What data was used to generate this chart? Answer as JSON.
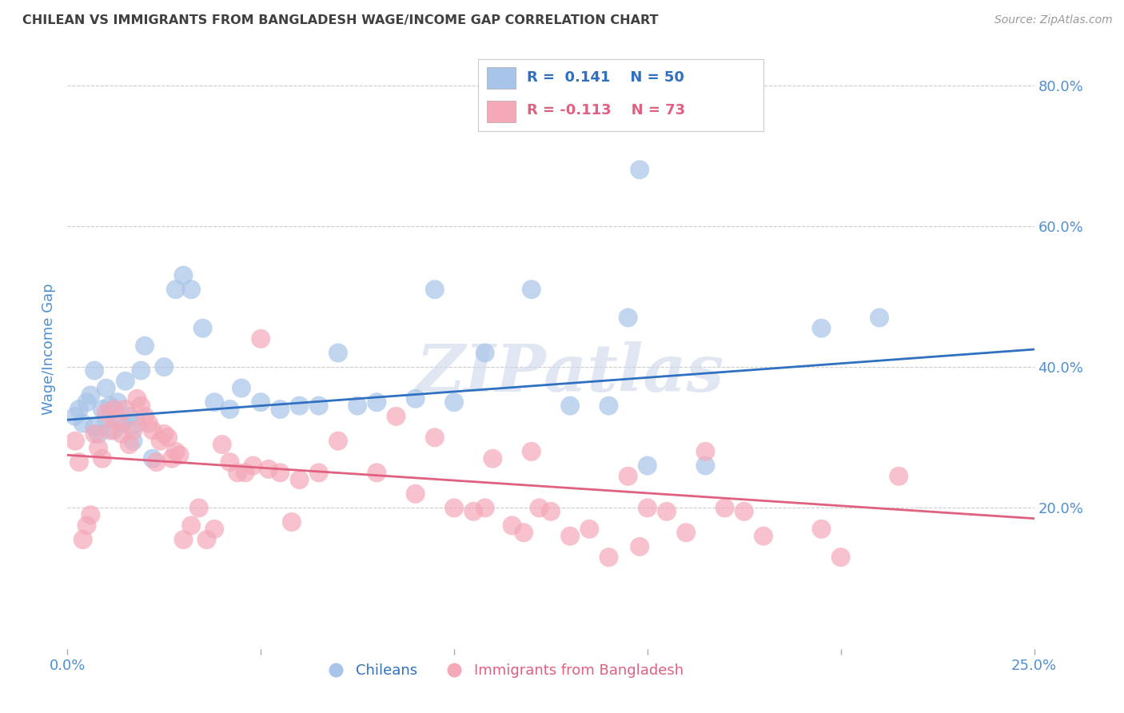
{
  "title": "CHILEAN VS IMMIGRANTS FROM BANGLADESH WAGE/INCOME GAP CORRELATION CHART",
  "source": "Source: ZipAtlas.com",
  "ylabel": "Wage/Income Gap",
  "xlim": [
    0.0,
    0.25
  ],
  "ylim": [
    0.0,
    0.85
  ],
  "xticks": [
    0.0,
    0.05,
    0.1,
    0.15,
    0.2,
    0.25
  ],
  "xticklabels": [
    "0.0%",
    "",
    "",
    "",
    "",
    "25.0%"
  ],
  "ytick_positions_right": [
    0.2,
    0.4,
    0.6,
    0.8
  ],
  "ytick_labels_right": [
    "20.0%",
    "40.0%",
    "60.0%",
    "80.0%"
  ],
  "blue_color": "#a8c4e8",
  "pink_color": "#f4a8b8",
  "blue_line_color": "#3070c0",
  "pink_line_color": "#e06080",
  "blue_label": "Chileans",
  "pink_label": "Immigrants from Bangladesh",
  "watermark": "ZIPatlas",
  "blue_scatter_x": [
    0.002,
    0.003,
    0.004,
    0.005,
    0.006,
    0.007,
    0.007,
    0.008,
    0.009,
    0.01,
    0.01,
    0.011,
    0.012,
    0.013,
    0.014,
    0.015,
    0.016,
    0.017,
    0.018,
    0.019,
    0.02,
    0.022,
    0.025,
    0.028,
    0.03,
    0.032,
    0.035,
    0.038,
    0.042,
    0.045,
    0.05,
    0.055,
    0.06,
    0.065,
    0.07,
    0.075,
    0.08,
    0.09,
    0.095,
    0.1,
    0.108,
    0.12,
    0.13,
    0.14,
    0.145,
    0.148,
    0.15,
    0.165,
    0.195,
    0.21
  ],
  "blue_scatter_y": [
    0.33,
    0.34,
    0.32,
    0.35,
    0.36,
    0.315,
    0.395,
    0.305,
    0.34,
    0.325,
    0.37,
    0.345,
    0.31,
    0.35,
    0.32,
    0.38,
    0.33,
    0.295,
    0.32,
    0.395,
    0.43,
    0.27,
    0.4,
    0.51,
    0.53,
    0.51,
    0.455,
    0.35,
    0.34,
    0.37,
    0.35,
    0.34,
    0.345,
    0.345,
    0.42,
    0.345,
    0.35,
    0.355,
    0.51,
    0.35,
    0.42,
    0.51,
    0.345,
    0.345,
    0.47,
    0.68,
    0.26,
    0.26,
    0.455,
    0.47
  ],
  "pink_scatter_x": [
    0.002,
    0.003,
    0.004,
    0.005,
    0.006,
    0.007,
    0.008,
    0.009,
    0.01,
    0.011,
    0.012,
    0.013,
    0.014,
    0.015,
    0.016,
    0.017,
    0.018,
    0.019,
    0.02,
    0.021,
    0.022,
    0.023,
    0.024,
    0.025,
    0.026,
    0.027,
    0.028,
    0.029,
    0.03,
    0.032,
    0.034,
    0.036,
    0.038,
    0.04,
    0.042,
    0.044,
    0.046,
    0.048,
    0.05,
    0.052,
    0.055,
    0.058,
    0.06,
    0.065,
    0.07,
    0.08,
    0.085,
    0.09,
    0.095,
    0.1,
    0.105,
    0.108,
    0.11,
    0.115,
    0.118,
    0.12,
    0.122,
    0.125,
    0.13,
    0.135,
    0.14,
    0.145,
    0.148,
    0.15,
    0.155,
    0.16,
    0.165,
    0.17,
    0.175,
    0.18,
    0.195,
    0.2,
    0.215
  ],
  "pink_scatter_y": [
    0.295,
    0.265,
    0.155,
    0.175,
    0.19,
    0.305,
    0.285,
    0.27,
    0.335,
    0.31,
    0.34,
    0.325,
    0.305,
    0.34,
    0.29,
    0.31,
    0.355,
    0.345,
    0.33,
    0.32,
    0.31,
    0.265,
    0.295,
    0.305,
    0.3,
    0.27,
    0.28,
    0.275,
    0.155,
    0.175,
    0.2,
    0.155,
    0.17,
    0.29,
    0.265,
    0.25,
    0.25,
    0.26,
    0.44,
    0.255,
    0.25,
    0.18,
    0.24,
    0.25,
    0.295,
    0.25,
    0.33,
    0.22,
    0.3,
    0.2,
    0.195,
    0.2,
    0.27,
    0.175,
    0.165,
    0.28,
    0.2,
    0.195,
    0.16,
    0.17,
    0.13,
    0.245,
    0.145,
    0.2,
    0.195,
    0.165,
    0.28,
    0.2,
    0.195,
    0.16,
    0.17,
    0.13,
    0.245
  ],
  "blue_trendline_x": [
    0.0,
    0.25
  ],
  "blue_trendline_y": [
    0.325,
    0.425
  ],
  "pink_trendline_x": [
    0.0,
    0.25
  ],
  "pink_trendline_y": [
    0.275,
    0.185
  ],
  "legend_R_blue": "R =  0.141",
  "legend_N_blue": "N = 50",
  "legend_R_pink": "R = -0.113",
  "legend_N_pink": "N = 73",
  "background_color": "#ffffff",
  "grid_color": "#cccccc",
  "title_color": "#404040",
  "tick_label_color": "#5090d0",
  "ylabel_color": "#5090d0"
}
